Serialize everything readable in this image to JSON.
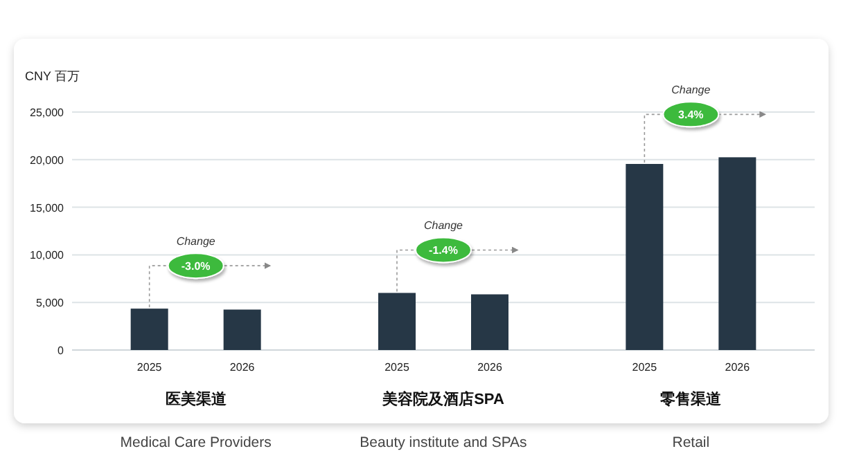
{
  "chart_data": {
    "type": "bar",
    "ylabel": "CNY 百万",
    "categories": [
      "2025",
      "2026",
      "2025",
      "2026",
      "2025",
      "2026"
    ],
    "values": [
      4350,
      4250,
      6000,
      5850,
      19550,
      20250
    ],
    "color": "#263746",
    "ylim": [
      0,
      25000
    ],
    "yticks": [
      0,
      {
        "value": 5000,
        "label": "5,000"
      },
      {
        "value": 10000,
        "label": "10,000"
      },
      {
        "value": 15000,
        "label": "15,000"
      },
      {
        "value": 20000,
        "label": "20,000"
      },
      {
        "value": 25000,
        "label": "25,000"
      }
    ],
    "grid": "y",
    "annotations": [
      "Change",
      "-3.0%",
      "医美渠道",
      "Medical Care Providers",
      "Change",
      "-1.4%",
      "美容院及酒店SPA",
      "Beauty institute and SPAs",
      "Change",
      "3.4%",
      "零售渠道",
      "Retail"
    ]
  }
}
